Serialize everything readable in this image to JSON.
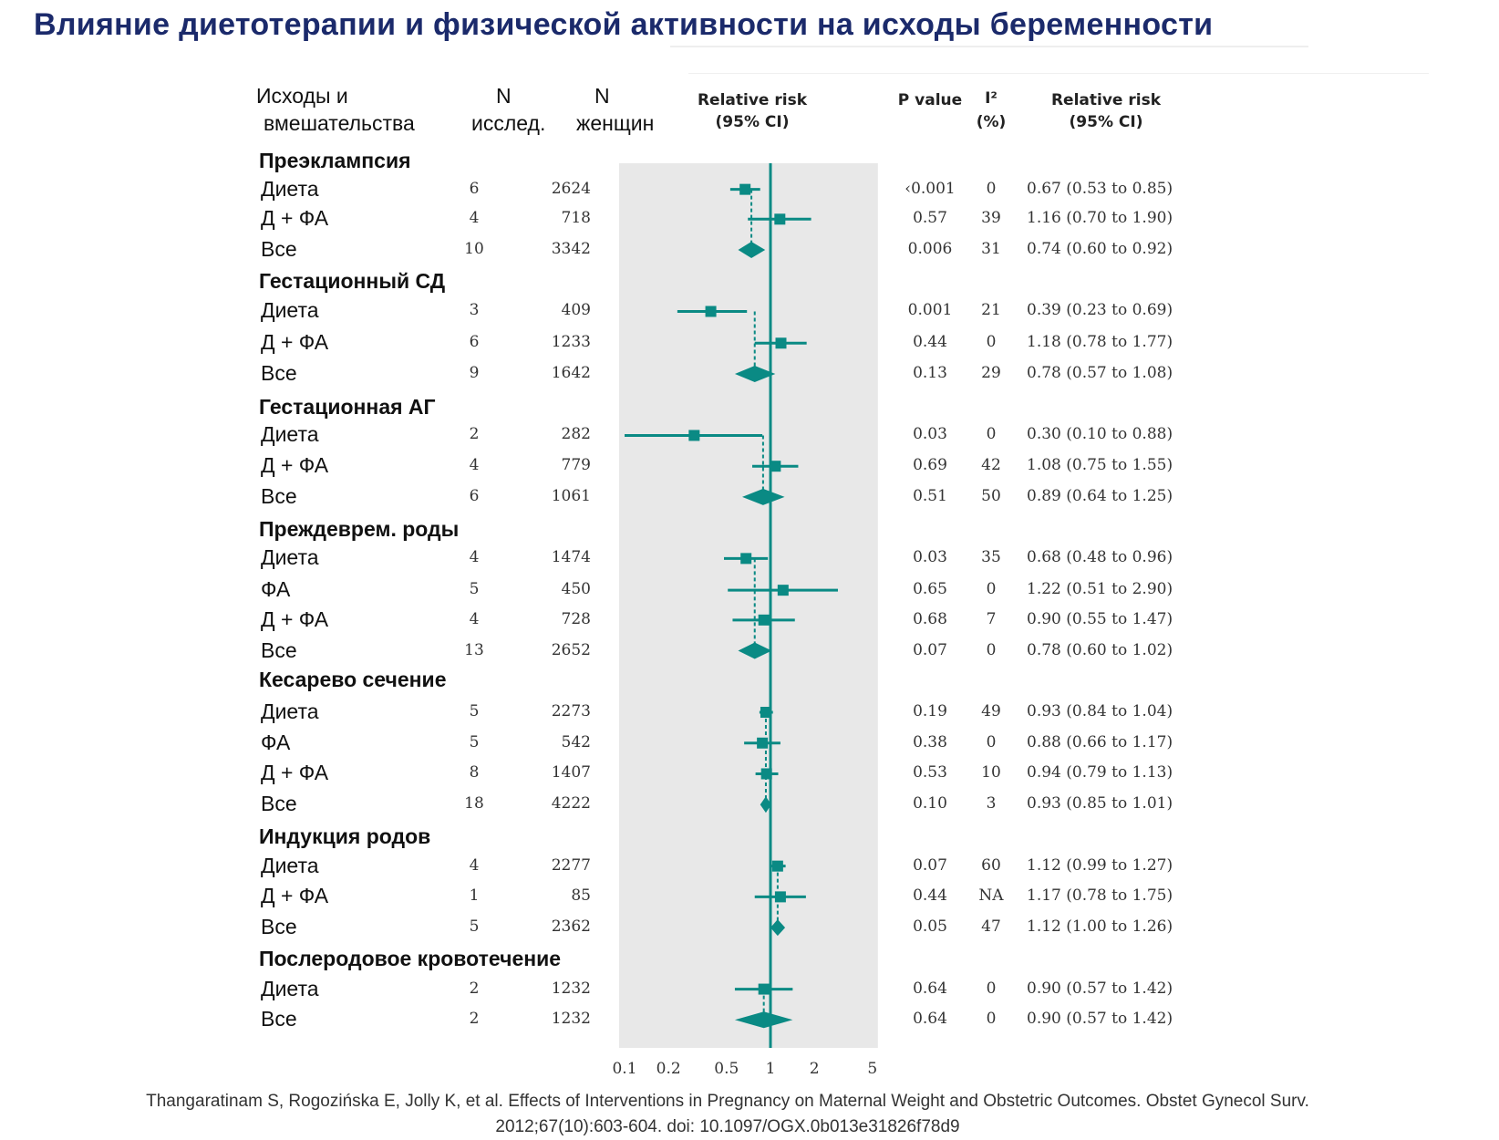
{
  "title": "Влияние диетотерапии и физической активности на исходы беременности",
  "headers": {
    "outcome_line1": "Исходы и",
    "outcome_line2": "вмешательства",
    "n_studies_line1": "N",
    "n_studies_line2": "исслед.",
    "n_women_line1": "N",
    "n_women_line2": "женщин",
    "rr_plot_line1": "Relative risk",
    "rr_plot_line2": "(95% CI)",
    "p_value": "P value",
    "i2_line1": "I²",
    "i2_line2": "(%)",
    "rr_text_line1": "Relative risk",
    "rr_text_line2": "(95% CI)"
  },
  "citation_line1": "Thangaratinam S, Rogozińska E, Jolly K, et al. Effects of Interventions in Pregnancy on Maternal Weight and Obstetric Outcomes. Obstet Gynecol Surv.",
  "citation_line2": "2012;67(10):603-604. doi: 10.1097/OGX.0b013e31826f78d9",
  "chart_data": {
    "type": "forest",
    "x_scale": "log",
    "xlim": [
      0.1,
      5
    ],
    "x_ticks": [
      "0.1",
      "0.2",
      "0.5",
      "1",
      "2",
      "5"
    ],
    "x_tick_values": [
      0.1,
      0.2,
      0.5,
      1,
      2,
      5
    ],
    "reference_line": 1,
    "colors": {
      "marker": "#0a8a84",
      "plot_bg": "#e8e8e8",
      "title": "#1b2a6b"
    },
    "groups": [
      {
        "name": "Преэклампсия",
        "rows": [
          {
            "label": "Диета",
            "n_studies": "6",
            "n_women": "2624",
            "rr": 0.67,
            "lo": 0.53,
            "hi": 0.85,
            "p": "‹0.001",
            "i2": "0",
            "text": "0.67 (0.53 to 0.85)",
            "kind": "study"
          },
          {
            "label": "Д + ФА",
            "n_studies": "4",
            "n_women": "718",
            "rr": 1.16,
            "lo": 0.7,
            "hi": 1.9,
            "p": "0.57",
            "i2": "39",
            "text": "1.16 (0.70 to 1.90)",
            "kind": "study"
          },
          {
            "label": "Все",
            "n_studies": "10",
            "n_women": "3342",
            "rr": 0.74,
            "lo": 0.6,
            "hi": 0.92,
            "p": "0.006",
            "i2": "31",
            "text": "0.74 (0.60 to 0.92)",
            "kind": "overall"
          }
        ]
      },
      {
        "name": "Гестационный СД",
        "rows": [
          {
            "label": "Диета",
            "n_studies": "3",
            "n_women": "409",
            "rr": 0.39,
            "lo": 0.23,
            "hi": 0.69,
            "p": "0.001",
            "i2": "21",
            "text": "0.39 (0.23 to 0.69)",
            "kind": "study"
          },
          {
            "label": "Д + ФА",
            "n_studies": "6",
            "n_women": "1233",
            "rr": 1.18,
            "lo": 0.78,
            "hi": 1.77,
            "p": "0.44",
            "i2": "0",
            "text": "1.18 (0.78 to 1.77)",
            "kind": "study"
          },
          {
            "label": "Все",
            "n_studies": "9",
            "n_women": "1642",
            "rr": 0.78,
            "lo": 0.57,
            "hi": 1.08,
            "p": "0.13",
            "i2": "29",
            "text": "0.78 (0.57 to 1.08)",
            "kind": "overall"
          }
        ]
      },
      {
        "name": "Гестационная АГ",
        "rows": [
          {
            "label": "Диета",
            "n_studies": "2",
            "n_women": "282",
            "rr": 0.3,
            "lo": 0.1,
            "hi": 0.88,
            "p": "0.03",
            "i2": "0",
            "text": "0.30 (0.10 to 0.88)",
            "kind": "study"
          },
          {
            "label": "Д + ФА",
            "n_studies": "4",
            "n_women": "779",
            "rr": 1.08,
            "lo": 0.75,
            "hi": 1.55,
            "p": "0.69",
            "i2": "42",
            "text": "1.08 (0.75 to 1.55)",
            "kind": "study"
          },
          {
            "label": "Все",
            "n_studies": "6",
            "n_women": "1061",
            "rr": 0.89,
            "lo": 0.64,
            "hi": 1.25,
            "p": "0.51",
            "i2": "50",
            "text": "0.89 (0.64 to 1.25)",
            "kind": "overall"
          }
        ]
      },
      {
        "name": "Преждеврем. роды",
        "rows": [
          {
            "label": "Диета",
            "n_studies": "4",
            "n_women": "1474",
            "rr": 0.68,
            "lo": 0.48,
            "hi": 0.96,
            "p": "0.03",
            "i2": "35",
            "text": "0.68 (0.48 to 0.96)",
            "kind": "study"
          },
          {
            "label": "ФА",
            "n_studies": "5",
            "n_women": "450",
            "rr": 1.22,
            "lo": 0.51,
            "hi": 2.9,
            "p": "0.65",
            "i2": "0",
            "text": "1.22 (0.51 to 2.90)",
            "kind": "study"
          },
          {
            "label": "Д + ФА",
            "n_studies": "4",
            "n_women": "728",
            "rr": 0.9,
            "lo": 0.55,
            "hi": 1.47,
            "p": "0.68",
            "i2": "7",
            "text": "0.90 (0.55 to 1.47)",
            "kind": "study"
          },
          {
            "label": "Все",
            "n_studies": "13",
            "n_women": "2652",
            "rr": 0.78,
            "lo": 0.6,
            "hi": 1.02,
            "p": "0.07",
            "i2": "0",
            "text": "0.78 (0.60 to 1.02)",
            "kind": "overall"
          }
        ]
      },
      {
        "name": "Кесарево сечение",
        "rows": [
          {
            "label": "Диета",
            "n_studies": "5",
            "n_women": "2273",
            "rr": 0.93,
            "lo": 0.84,
            "hi": 1.04,
            "p": "0.19",
            "i2": "49",
            "text": "0.93 (0.84 to 1.04)",
            "kind": "study"
          },
          {
            "label": "ФА",
            "n_studies": "5",
            "n_women": "542",
            "rr": 0.88,
            "lo": 0.66,
            "hi": 1.17,
            "p": "0.38",
            "i2": "0",
            "text": "0.88 (0.66 to 1.17)",
            "kind": "study"
          },
          {
            "label": "Д + ФА",
            "n_studies": "8",
            "n_women": "1407",
            "rr": 0.94,
            "lo": 0.79,
            "hi": 1.13,
            "p": "0.53",
            "i2": "10",
            "text": "0.94 (0.79 to 1.13)",
            "kind": "study"
          },
          {
            "label": "Все",
            "n_studies": "18",
            "n_women": "4222",
            "rr": 0.93,
            "lo": 0.85,
            "hi": 1.01,
            "p": "0.10",
            "i2": "3",
            "text": "0.93 (0.85 to 1.01)",
            "kind": "overall"
          }
        ]
      },
      {
        "name": "Индукция родов",
        "rows": [
          {
            "label": "Диета",
            "n_studies": "4",
            "n_women": "2277",
            "rr": 1.12,
            "lo": 0.99,
            "hi": 1.27,
            "p": "0.07",
            "i2": "60",
            "text": "1.12 (0.99 to 1.27)",
            "kind": "study"
          },
          {
            "label": "Д + ФА",
            "n_studies": "1",
            "n_women": "85",
            "rr": 1.17,
            "lo": 0.78,
            "hi": 1.75,
            "p": "0.44",
            "i2": "NA",
            "text": "1.17 (0.78 to 1.75)",
            "kind": "study"
          },
          {
            "label": "Все",
            "n_studies": "5",
            "n_women": "2362",
            "rr": 1.12,
            "lo": 1.0,
            "hi": 1.26,
            "p": "0.05",
            "i2": "47",
            "text": "1.12 (1.00 to 1.26)",
            "kind": "overall"
          }
        ]
      },
      {
        "name": "Послеродовое кровотечение",
        "rows": [
          {
            "label": "Диета",
            "n_studies": "2",
            "n_women": "1232",
            "rr": 0.9,
            "lo": 0.57,
            "hi": 1.42,
            "p": "0.64",
            "i2": "0",
            "text": "0.90 (0.57 to 1.42)",
            "kind": "study"
          },
          {
            "label": "Все",
            "n_studies": "2",
            "n_women": "1232",
            "rr": 0.9,
            "lo": 0.57,
            "hi": 1.42,
            "p": "0.64",
            "i2": "0",
            "text": "0.90 (0.57 to 1.42)",
            "kind": "overall"
          }
        ]
      }
    ]
  }
}
